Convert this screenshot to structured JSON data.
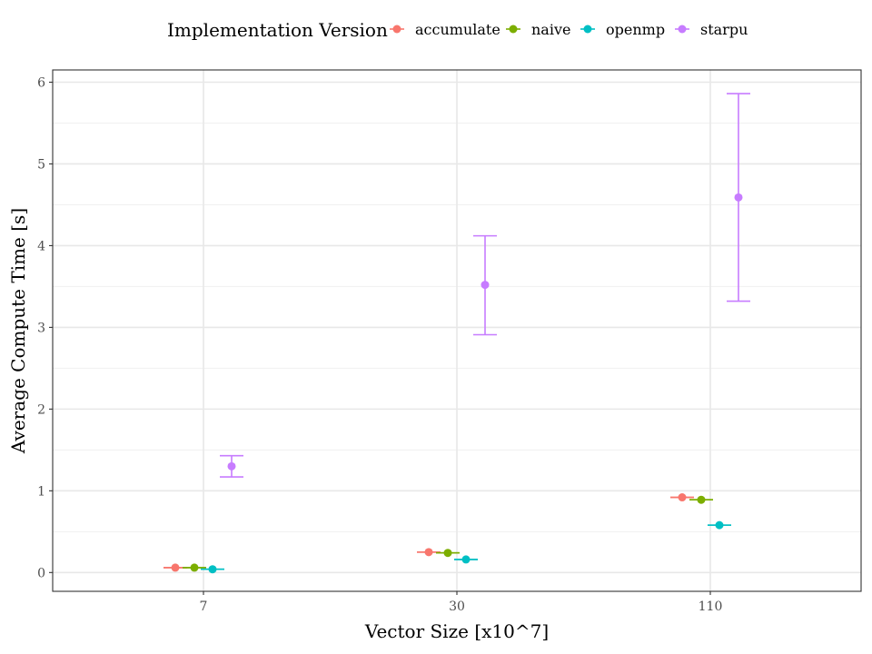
{
  "chart_data": {
    "type": "scatter",
    "xlabel": "Vector Size [x10^7]",
    "ylabel": "Average Compute Time [s]",
    "categories": [
      "7",
      "30",
      "110"
    ],
    "ylim": [
      -0.23,
      6.15
    ],
    "yticks": [
      0,
      1,
      2,
      3,
      4,
      5,
      6
    ],
    "grid": true,
    "legend": {
      "title": "Implementation Version",
      "position": "top"
    },
    "series": [
      {
        "name": "accumulate",
        "color": "#F8766D",
        "values": [
          0.06,
          0.25,
          0.92
        ],
        "lower": [
          0.06,
          0.25,
          0.92
        ],
        "upper": [
          0.06,
          0.25,
          0.92
        ]
      },
      {
        "name": "naive",
        "color": "#7CAE00",
        "values": [
          0.06,
          0.24,
          0.89
        ],
        "lower": [
          0.06,
          0.24,
          0.89
        ],
        "upper": [
          0.06,
          0.24,
          0.89
        ]
      },
      {
        "name": "openmp",
        "color": "#00BFC4",
        "values": [
          0.04,
          0.16,
          0.58
        ],
        "lower": [
          0.04,
          0.16,
          0.58
        ],
        "upper": [
          0.04,
          0.16,
          0.58
        ]
      },
      {
        "name": "starpu",
        "color": "#C77CFF",
        "values": [
          1.3,
          3.52,
          4.59
        ],
        "lower": [
          1.17,
          2.91,
          3.32
        ],
        "upper": [
          1.43,
          4.12,
          5.86
        ]
      }
    ]
  }
}
